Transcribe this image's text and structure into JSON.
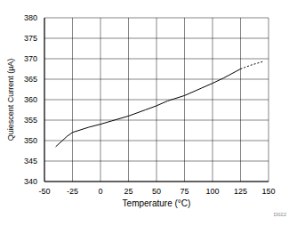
{
  "chart_data": {
    "type": "line",
    "x_label": "Temperature (°C)",
    "y_label": "Quiescent Current (µA)",
    "annotation": "D022",
    "x": [
      -40,
      -30,
      -25,
      -10,
      0,
      10,
      25,
      40,
      50,
      60,
      75,
      90,
      100,
      110,
      125,
      135,
      145
    ],
    "series": [
      {
        "color": "#000000",
        "line_style": "solid",
        "values": [
          348.5,
          351,
          352,
          353.3,
          354,
          354.8,
          356,
          357.5,
          358.5,
          359.7,
          361,
          362.8,
          364,
          365.3,
          367.5,
          null,
          null
        ]
      },
      {
        "color": "#000000",
        "line_style": "dashed",
        "values": [
          null,
          null,
          null,
          null,
          null,
          null,
          null,
          null,
          null,
          null,
          null,
          null,
          null,
          null,
          367.5,
          368.5,
          369.3
        ]
      }
    ],
    "xlim": [
      -50,
      150
    ],
    "xticks": [
      -50,
      -25,
      0,
      25,
      50,
      75,
      100,
      125,
      150
    ],
    "ylim": [
      340,
      380
    ],
    "yticks": [
      340,
      345,
      350,
      355,
      360,
      365,
      370,
      375,
      380
    ],
    "grid": true
  }
}
